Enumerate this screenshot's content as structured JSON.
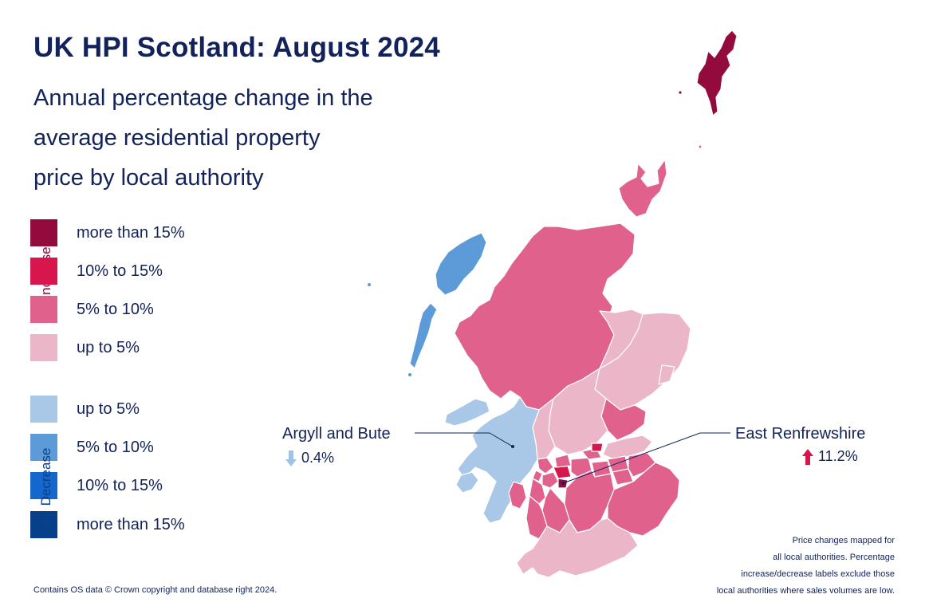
{
  "title": "UK HPI Scotland: August 2024",
  "subtitle_lines": [
    "Annual percentage change in the",
    "average residential property",
    "price by local authority"
  ],
  "legend": {
    "increase_label": "Increase",
    "decrease_label": "Decrease",
    "increase_color": "#8a0538",
    "decrease_color": "#0b3f8a",
    "increase": [
      {
        "label": "more than 15%",
        "color": "#930b3c"
      },
      {
        "label": "10% to 15%",
        "color": "#d6164d"
      },
      {
        "label": "5% to 10%",
        "color": "#df618c"
      },
      {
        "label": "up to 5%",
        "color": "#ebb6c8"
      }
    ],
    "decrease": [
      {
        "label": "up to 5%",
        "color": "#a9c7e6"
      },
      {
        "label": "5% to 10%",
        "color": "#5d9bd8"
      },
      {
        "label": "10% to 15%",
        "color": "#1467cc"
      },
      {
        "label": "more than 15%",
        "color": "#073f8a"
      }
    ]
  },
  "callouts": [
    {
      "name": "Argyll and Bute",
      "value": "0.4%",
      "direction": "decrease",
      "arrow_color": "#9fc2e6"
    },
    {
      "name": "East Renfrewshire",
      "value": "11.2%",
      "direction": "increase",
      "arrow_color": "#d6164d"
    }
  ],
  "footnote_lines": [
    "Price changes mapped for",
    "all local authorities. Percentage",
    "increase/decrease labels exclude those",
    "local authorities where sales volumes are low."
  ],
  "credit": "Contains OS data © Crown copyright and database right 2024."
}
